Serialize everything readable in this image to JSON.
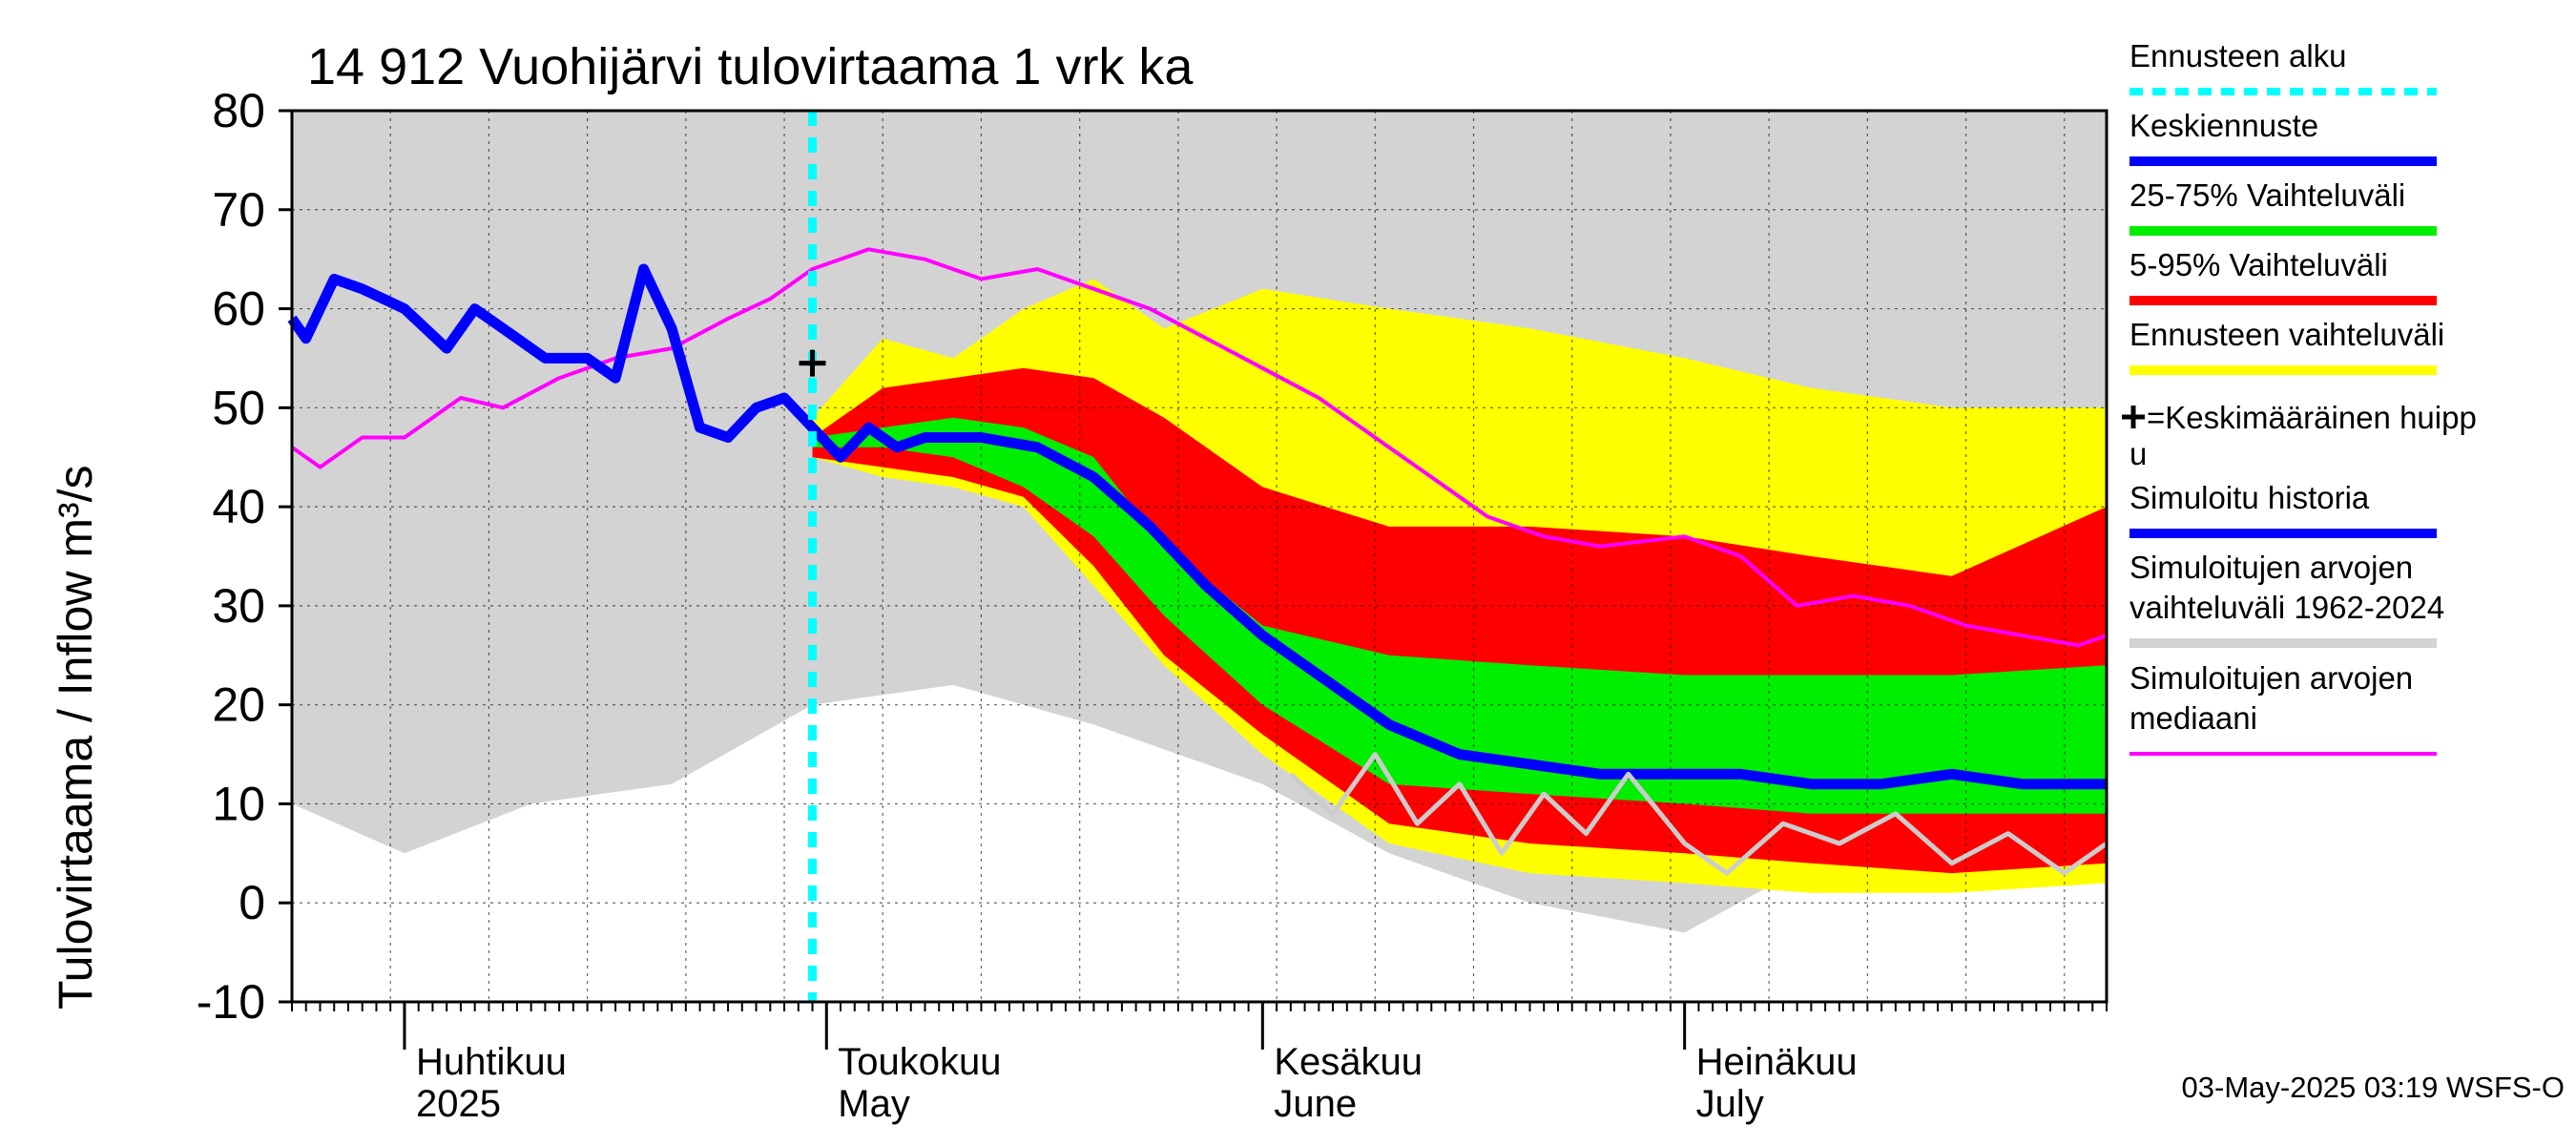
{
  "chart_data": {
    "type": "area",
    "title": "14 912 Vuohijärvi tulovirtaama 1 vrk ka",
    "ylabel": "Tulovirtaama / Inflow    m³/s",
    "ylim": [
      -10,
      80
    ],
    "yticks": [
      -10,
      0,
      10,
      20,
      30,
      40,
      50,
      60,
      70,
      80
    ],
    "x_range": [
      "2025-03-24",
      "2025-07-31"
    ],
    "month_labels": [
      {
        "fi": "Huhtikuu",
        "en": "2025",
        "date": "2025-04-01"
      },
      {
        "fi": "Toukokuu",
        "en": "May",
        "date": "2025-05-01"
      },
      {
        "fi": "Kesäkuu",
        "en": "June",
        "date": "2025-06-01"
      },
      {
        "fi": "Heinäkuu",
        "en": "July",
        "date": "2025-07-01"
      }
    ],
    "forecast_start": "2025-04-30",
    "mean_peak": {
      "date": "2025-04-30",
      "value": 54.5
    },
    "grid": true,
    "legend_position": "right",
    "series": [
      {
        "name": "Simuloitujen arvojen vaihteluväli 1962-2024",
        "kind": "band",
        "color": "#d3d3d3",
        "x": [
          "2025-03-24",
          "2025-04-01",
          "2025-04-10",
          "2025-04-20",
          "2025-04-30",
          "2025-05-10",
          "2025-05-20",
          "2025-06-01",
          "2025-06-10",
          "2025-06-20",
          "2025-07-01",
          "2025-07-10",
          "2025-07-20",
          "2025-07-31"
        ],
        "upper": [
          80,
          80,
          80,
          80,
          80,
          80,
          80,
          80,
          80,
          80,
          80,
          80,
          80,
          80
        ],
        "lower": [
          10,
          5,
          10,
          12,
          20,
          22,
          18,
          12,
          5,
          0,
          -3,
          4,
          5,
          5
        ]
      },
      {
        "name": "Ennusteen vaihteluväli",
        "kind": "band",
        "color": "#ffff00",
        "x": [
          "2025-04-30",
          "2025-05-05",
          "2025-05-10",
          "2025-05-15",
          "2025-05-20",
          "2025-05-25",
          "2025-06-01",
          "2025-06-10",
          "2025-06-20",
          "2025-07-01",
          "2025-07-10",
          "2025-07-20",
          "2025-07-31"
        ],
        "upper": [
          49,
          57,
          55,
          60,
          63,
          58,
          62,
          60,
          58,
          55,
          52,
          50,
          50
        ],
        "lower": [
          45,
          43,
          42,
          40,
          32,
          24,
          15,
          6,
          3,
          2,
          1,
          1,
          2
        ]
      },
      {
        "name": "5-95% Vaihteluväli",
        "kind": "band",
        "color": "#ff0000",
        "x": [
          "2025-04-30",
          "2025-05-05",
          "2025-05-10",
          "2025-05-15",
          "2025-05-20",
          "2025-05-25",
          "2025-06-01",
          "2025-06-10",
          "2025-06-20",
          "2025-07-01",
          "2025-07-10",
          "2025-07-20",
          "2025-07-31"
        ],
        "upper": [
          47,
          52,
          53,
          54,
          53,
          49,
          42,
          38,
          38,
          37,
          35,
          33,
          40
        ],
        "lower": [
          45,
          44,
          43,
          41,
          34,
          25,
          17,
          8,
          6,
          5,
          4,
          3,
          4
        ]
      },
      {
        "name": "25-75% Vaihteluväli",
        "kind": "band",
        "color": "#00ee00",
        "x": [
          "2025-04-30",
          "2025-05-05",
          "2025-05-10",
          "2025-05-15",
          "2025-05-20",
          "2025-05-25",
          "2025-06-01",
          "2025-06-10",
          "2025-06-20",
          "2025-07-01",
          "2025-07-10",
          "2025-07-20",
          "2025-07-31"
        ],
        "upper": [
          47,
          48,
          49,
          48,
          45,
          36,
          28,
          25,
          24,
          23,
          23,
          23,
          24
        ],
        "lower": [
          46,
          46,
          45,
          42,
          37,
          29,
          20,
          12,
          11,
          10,
          9,
          9,
          9
        ]
      },
      {
        "name": "Simuloitujen arvojen mediaani",
        "kind": "line",
        "color": "#ff00ff",
        "x": [
          "2025-03-24",
          "2025-03-26",
          "2025-03-29",
          "2025-04-01",
          "2025-04-05",
          "2025-04-08",
          "2025-04-12",
          "2025-04-16",
          "2025-04-20",
          "2025-04-24",
          "2025-04-27",
          "2025-04-30",
          "2025-05-04",
          "2025-05-08",
          "2025-05-12",
          "2025-05-16",
          "2025-05-20",
          "2025-05-24",
          "2025-05-28",
          "2025-06-01",
          "2025-06-05",
          "2025-06-09",
          "2025-06-13",
          "2025-06-17",
          "2025-06-21",
          "2025-06-25",
          "2025-07-01",
          "2025-07-05",
          "2025-07-09",
          "2025-07-13",
          "2025-07-17",
          "2025-07-21",
          "2025-07-25",
          "2025-07-29",
          "2025-07-31"
        ],
        "y": [
          46,
          44,
          47,
          47,
          51,
          50,
          53,
          55,
          56,
          59,
          61,
          64,
          66,
          65,
          63,
          64,
          62,
          60,
          57,
          54,
          51,
          47,
          43,
          39,
          37,
          36,
          37,
          35,
          30,
          31,
          30,
          28,
          27,
          26,
          27
        ]
      },
      {
        "name": "Simuloitu historia",
        "kind": "line",
        "color": "#0000ff",
        "x": [
          "2025-03-24",
          "2025-03-25",
          "2025-03-27",
          "2025-03-29",
          "2025-04-01",
          "2025-04-04",
          "2025-04-06",
          "2025-04-08",
          "2025-04-11",
          "2025-04-14",
          "2025-04-16",
          "2025-04-18",
          "2025-04-20",
          "2025-04-22",
          "2025-04-24",
          "2025-04-26",
          "2025-04-28",
          "2025-04-30"
        ],
        "y": [
          59,
          57,
          63,
          62,
          60,
          56,
          60,
          58,
          55,
          55,
          53,
          64,
          58,
          48,
          47,
          50,
          51,
          48
        ]
      },
      {
        "name": "Keskiennuste",
        "kind": "line",
        "color": "#0000ff",
        "x": [
          "2025-04-30",
          "2025-05-02",
          "2025-05-04",
          "2025-05-06",
          "2025-05-08",
          "2025-05-12",
          "2025-05-16",
          "2025-05-20",
          "2025-05-24",
          "2025-05-28",
          "2025-06-01",
          "2025-06-05",
          "2025-06-10",
          "2025-06-15",
          "2025-06-20",
          "2025-06-25",
          "2025-07-01",
          "2025-07-05",
          "2025-07-10",
          "2025-07-15",
          "2025-07-20",
          "2025-07-25",
          "2025-07-31"
        ],
        "y": [
          48,
          45,
          48,
          46,
          47,
          47,
          46,
          43,
          38,
          32,
          27,
          23,
          18,
          15,
          14,
          13,
          13,
          13,
          12,
          12,
          13,
          12,
          12
        ]
      },
      {
        "name": "",
        "kind": "line",
        "color": "#cccccc",
        "x": [
          "2025-06-03",
          "2025-06-06",
          "2025-06-09",
          "2025-06-12",
          "2025-06-15",
          "2025-06-18",
          "2025-06-21",
          "2025-06-24",
          "2025-06-27",
          "2025-07-01",
          "2025-07-04",
          "2025-07-08",
          "2025-07-12",
          "2025-07-16",
          "2025-07-20",
          "2025-07-24",
          "2025-07-28",
          "2025-07-31"
        ],
        "y": [
          13,
          9,
          15,
          8,
          12,
          5,
          11,
          7,
          13,
          6,
          3,
          8,
          6,
          9,
          4,
          7,
          3,
          6
        ]
      }
    ]
  },
  "legend": [
    {
      "label": "Ennusteen alku",
      "color": "#00ffff",
      "style": "dotted"
    },
    {
      "label": "Keskiennuste",
      "color": "#0000ff",
      "style": "solid"
    },
    {
      "label": "25-75% Vaihteluväli",
      "color": "#00ee00",
      "style": "solid"
    },
    {
      "label": "5-95% Vaihteluväli",
      "color": "#ff0000",
      "style": "solid"
    },
    {
      "label": "Ennusteen vaihteluväli",
      "color": "#ffff00",
      "style": "solid"
    },
    {
      "label": "=Keskimääräinen huipp\nu",
      "color": "#000000",
      "style": "plus"
    },
    {
      "label": "Simuloitu historia",
      "color": "#0000ff",
      "style": "solid"
    },
    {
      "label": "Simuloitujen arvojen\nvaihteluväli 1962-2024",
      "color": "#d3d3d3",
      "style": "solid"
    },
    {
      "label": "Simuloitujen arvojen\nmediaani",
      "color": "#ff00ff",
      "style": "thin"
    }
  ],
  "footer": "03-May-2025 03:19 WSFS-O"
}
